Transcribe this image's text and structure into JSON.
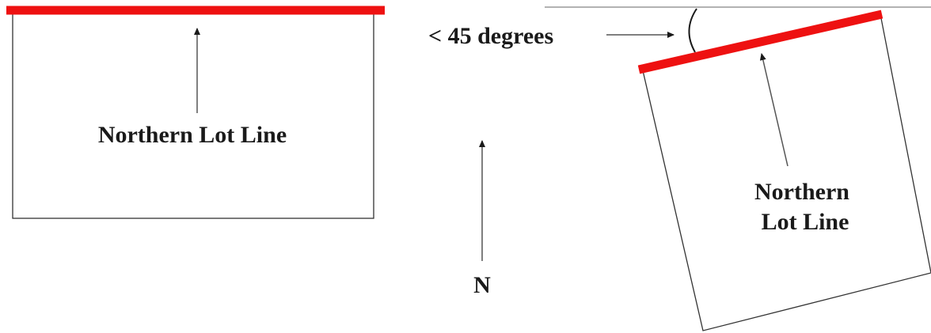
{
  "left_lot": {
    "label": "Northern Lot Line"
  },
  "north_indicator": {
    "label": "N"
  },
  "angle": {
    "label": "< 45 degrees"
  },
  "right_lot": {
    "label_line1": "Northern",
    "label_line2": "Lot Line"
  },
  "colors": {
    "lot_line": "#ee1111",
    "outline": "#333333",
    "text": "#1a1a1a",
    "reference_line": "#999999"
  }
}
